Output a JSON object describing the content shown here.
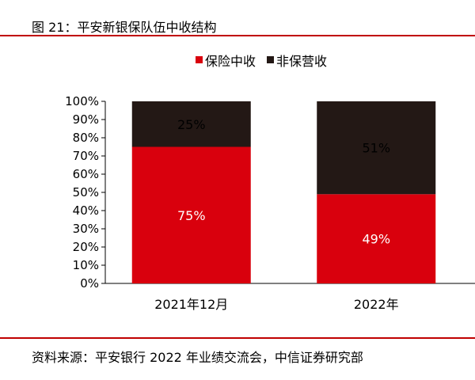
{
  "figure": {
    "title": "图 21：平安新银保队伍中收结构",
    "source": "资料来源：平安银行 2022 年业绩交流会，中信证券研究部"
  },
  "colors": {
    "accent": "#c00000",
    "series_insurance": "#d9000d",
    "series_non_insurance": "#231815",
    "label_dark": "#000000",
    "label_light": "#ffffff"
  },
  "chart_data": {
    "type": "bar",
    "stacked": true,
    "categories": [
      "2021年12月",
      "2022年"
    ],
    "series": [
      {
        "name": "保险中收",
        "values": [
          75,
          49
        ],
        "labels": [
          "75%",
          "49%"
        ]
      },
      {
        "name": "非保营收",
        "values": [
          25,
          51
        ],
        "labels": [
          "25%",
          "51%"
        ]
      }
    ],
    "ylim": [
      0,
      100
    ],
    "y_ticks": [
      "0%",
      "10%",
      "20%",
      "30%",
      "40%",
      "50%",
      "60%",
      "70%",
      "80%",
      "90%",
      "100%"
    ],
    "legend_position": "top",
    "grid": false
  }
}
